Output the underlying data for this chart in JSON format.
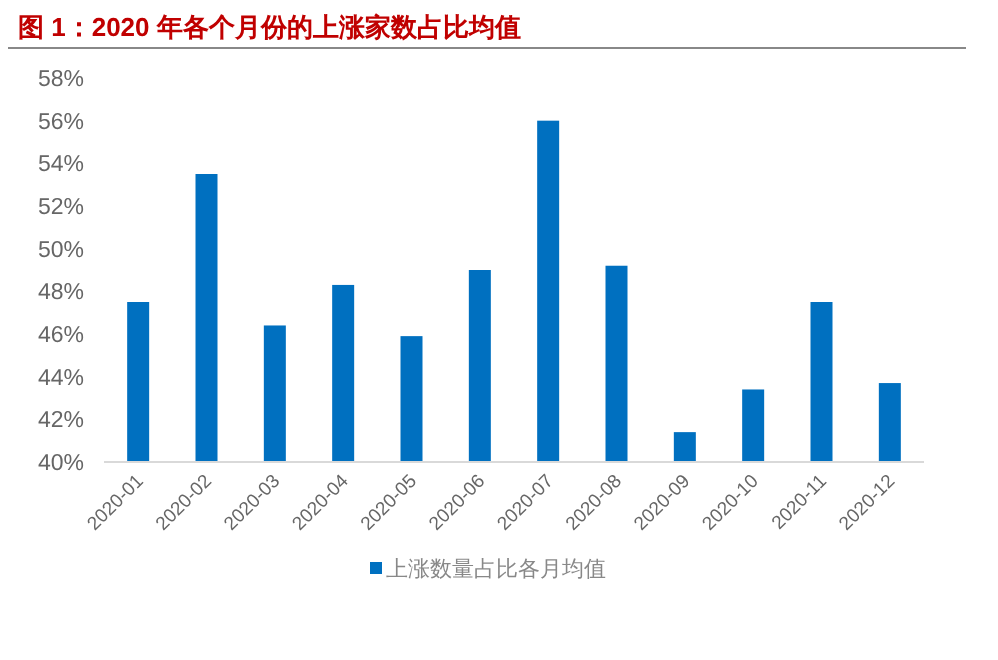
{
  "chart_data": {
    "type": "bar",
    "title": "图 1：2020 年各个月份的上涨家数占比均值",
    "categories": [
      "2020-01",
      "2020-02",
      "2020-03",
      "2020-04",
      "2020-05",
      "2020-06",
      "2020-07",
      "2020-08",
      "2020-09",
      "2020-10",
      "2020-11",
      "2020-12"
    ],
    "series": [
      {
        "name": "上涨数量占比各月均值",
        "color": "#0070c0",
        "values": [
          47.5,
          53.5,
          46.4,
          48.3,
          45.9,
          49.0,
          56.0,
          49.2,
          41.4,
          43.4,
          47.5,
          43.7
        ]
      }
    ],
    "ylim": [
      40,
      58
    ],
    "yticks": [
      {
        "value": 40,
        "label": "40%"
      },
      {
        "value": 42,
        "label": "42%"
      },
      {
        "value": 44,
        "label": "44%"
      },
      {
        "value": 46,
        "label": "46%"
      },
      {
        "value": 48,
        "label": "48%"
      },
      {
        "value": 50,
        "label": "50%"
      },
      {
        "value": 52,
        "label": "52%"
      },
      {
        "value": 54,
        "label": "54%"
      },
      {
        "value": 56,
        "label": "56%"
      },
      {
        "value": 58,
        "label": "58%"
      }
    ],
    "grid": false,
    "legend": "bottom"
  }
}
